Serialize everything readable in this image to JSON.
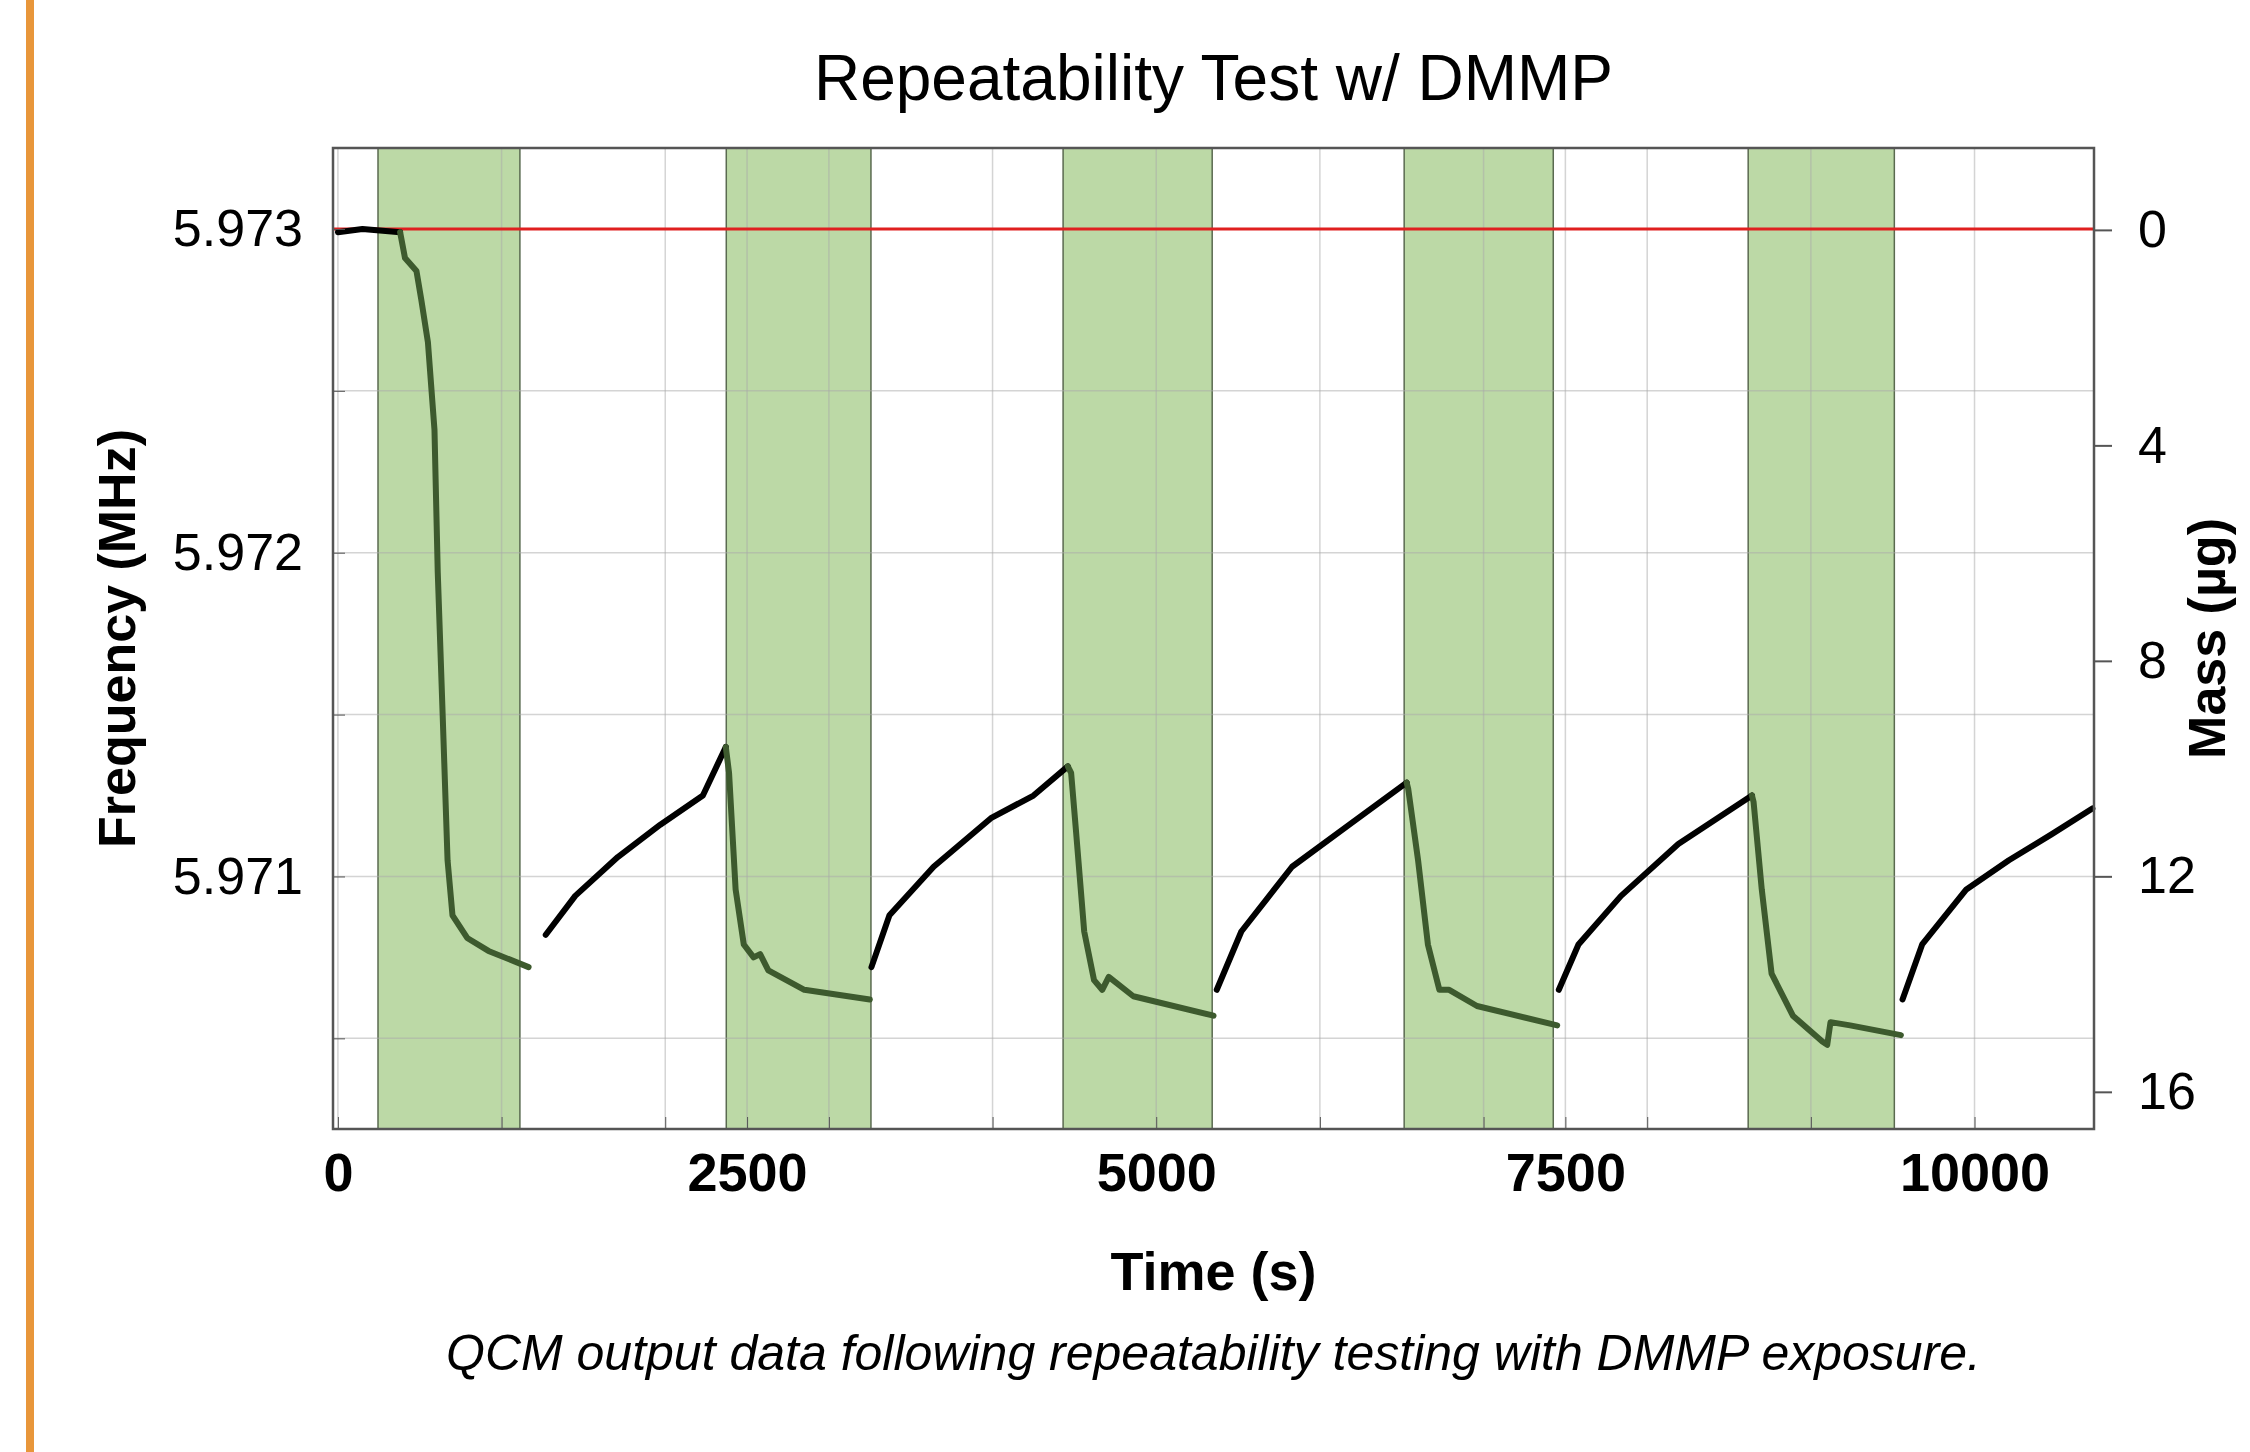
{
  "chart_data": {
    "type": "line",
    "title": "Repeatability Test w/ DMMP",
    "xlabel": "Time (s)",
    "ylabel": "Frequency (MHz)",
    "y2label": "Mass (µg)",
    "annotations": [
      "QCM output data following repeatability testing with DMMP exposure."
    ],
    "xlim": [
      -30,
      10730
    ],
    "xticks": [
      0,
      {
        "value": 1000,
        "label": null
      },
      {
        "value": 2000,
        "label": null
      },
      2500,
      {
        "value": 3000,
        "label": null
      },
      {
        "value": 4000,
        "label": null
      },
      5000,
      {
        "value": 6000,
        "label": null
      },
      {
        "value": 7000,
        "label": null
      },
      7500,
      {
        "value": 8000,
        "label": null
      },
      {
        "value": 9000,
        "label": null
      },
      10000
    ],
    "ylim": [
      5.97022,
      5.97325
    ],
    "yticks": [
      {
        "value": 5.9705,
        "label": null
      },
      5.971,
      {
        "value": 5.9715,
        "label": null
      },
      5.972,
      {
        "value": 5.9725,
        "label": null
      },
      5.973
    ],
    "y2lim": [
      16.69,
      -1.52
    ],
    "y2ticks": [
      0,
      4,
      8,
      12,
      16
    ],
    "grid": true,
    "line_style": "solid",
    "ref_lines": [
      {
        "axis": "y",
        "value": 5.973,
        "color": "#e02020"
      }
    ],
    "bands": [
      {
        "axis": "x",
        "from": 245,
        "to": 1112,
        "color": "#bcd9a6"
      },
      {
        "axis": "x",
        "from": 2373,
        "to": 3257,
        "color": "#bcd9a6"
      },
      {
        "axis": "x",
        "from": 4431,
        "to": 5342,
        "color": "#bcd9a6"
      },
      {
        "axis": "x",
        "from": 6515,
        "to": 7426,
        "color": "#bcd9a6"
      },
      {
        "axis": "x",
        "from": 8617,
        "to": 9510,
        "color": "#bcd9a6"
      }
    ],
    "series": [
      {
        "color": "#000000",
        "x": [
          0,
          150,
          380,
          1180,
          1270,
          1450,
          1710,
          1970,
          2230,
          2370,
          2390,
          3260,
          3370,
          3640,
          3990,
          4250,
          4460,
          4480,
          5370,
          5520,
          5830,
          6180,
          6530,
          6540,
          7460,
          7580,
          7840,
          8190,
          8640,
          8650,
          9560,
          9680,
          9950,
          10210,
          10470,
          10720
        ],
        "values": [
          5.97299,
          5.973,
          5.97299,
          null,
          5.97082,
          5.97094,
          5.97106,
          5.97116,
          5.97125,
          5.9714,
          null,
          5.97072,
          5.97088,
          5.97103,
          5.97118,
          5.97125,
          5.97134,
          null,
          5.97065,
          5.97083,
          5.97103,
          5.97116,
          5.97129,
          null,
          5.97065,
          5.97079,
          5.97094,
          5.9711,
          5.97125,
          null,
          5.97062,
          5.97079,
          5.97096,
          5.97105,
          5.97113,
          5.97121
        ]
      },
      {
        "color": "#3d5a2e",
        "x": [
          380,
          410,
          480,
          510,
          550,
          590,
          610,
          640,
          670,
          700,
          790,
          920,
          1165,
          1180,
          2370,
          2390,
          2430,
          2480,
          2540,
          2580,
          2630,
          2850,
          3250,
          3260,
          4460,
          4480,
          4510,
          4560,
          4620,
          4670,
          4710,
          4860,
          5350,
          5370,
          6530,
          6540,
          6600,
          6660,
          6730,
          6790,
          6960,
          7450,
          7460,
          8640,
          8650,
          8700,
          8760,
          8890,
          9070,
          9100,
          9120,
          9240,
          9550
        ],
        "values": [
          5.97299,
          5.97291,
          5.97287,
          5.97278,
          5.97265,
          5.97238,
          5.97194,
          5.9715,
          5.97105,
          5.97088,
          5.97081,
          5.97077,
          5.97072,
          null,
          5.9714,
          5.97132,
          5.97096,
          5.97079,
          5.97075,
          5.97076,
          5.97071,
          5.97065,
          5.97062,
          null,
          5.97134,
          5.97132,
          5.97114,
          5.97083,
          5.97068,
          5.97065,
          5.97069,
          5.97063,
          5.97057,
          null,
          5.97129,
          5.97127,
          5.97105,
          5.97079,
          5.97065,
          5.97065,
          5.9706,
          5.97054,
          null,
          5.97125,
          5.97123,
          5.97096,
          5.9707,
          5.97057,
          5.97049,
          5.97048,
          5.97055,
          5.97054,
          5.97051
        ]
      }
    ]
  }
}
